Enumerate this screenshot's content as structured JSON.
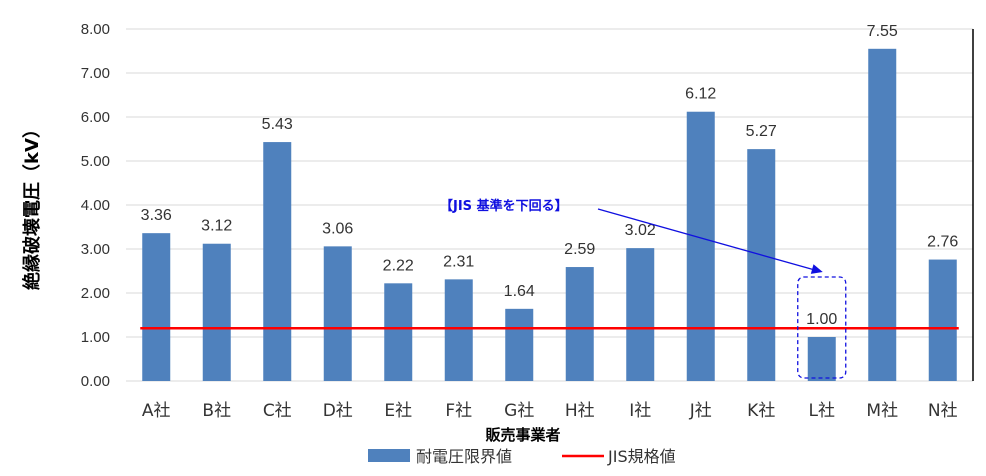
{
  "chart_data": {
    "type": "bar",
    "categories": [
      "A社",
      "B社",
      "C社",
      "D社",
      "E社",
      "F社",
      "G社",
      "H社",
      "I社",
      "J社",
      "K社",
      "L社",
      "M社",
      "N社"
    ],
    "series": [
      {
        "name": "耐電圧限界値",
        "values": [
          3.36,
          3.12,
          5.43,
          3.06,
          2.22,
          2.31,
          1.64,
          2.59,
          3.02,
          6.12,
          5.27,
          1.0,
          7.55,
          2.76
        ],
        "color": "#4f81bd"
      }
    ],
    "data_labels": [
      "3.36",
      "3.12",
      "5.43",
      "3.06",
      "2.22",
      "2.31",
      "1.64",
      "2.59",
      "3.02",
      "6.12",
      "5.27",
      "1.00",
      "7.55",
      "2.76"
    ],
    "reference_line": {
      "name": "JIS規格値",
      "value": 1.2,
      "color": "#ff0000"
    },
    "ylabel": "絶縁破壊電圧（kV）",
    "xlabel": "販売事業者",
    "ylim": [
      0,
      8
    ],
    "yticks": [
      "0.00",
      "1.00",
      "2.00",
      "3.00",
      "4.00",
      "5.00",
      "6.00",
      "7.00",
      "8.00"
    ],
    "grid": true,
    "legend_position": "bottom",
    "annotation": {
      "text": "【JIS 基準を下回る】",
      "target_category": "L社",
      "color": "#1010e0"
    }
  }
}
